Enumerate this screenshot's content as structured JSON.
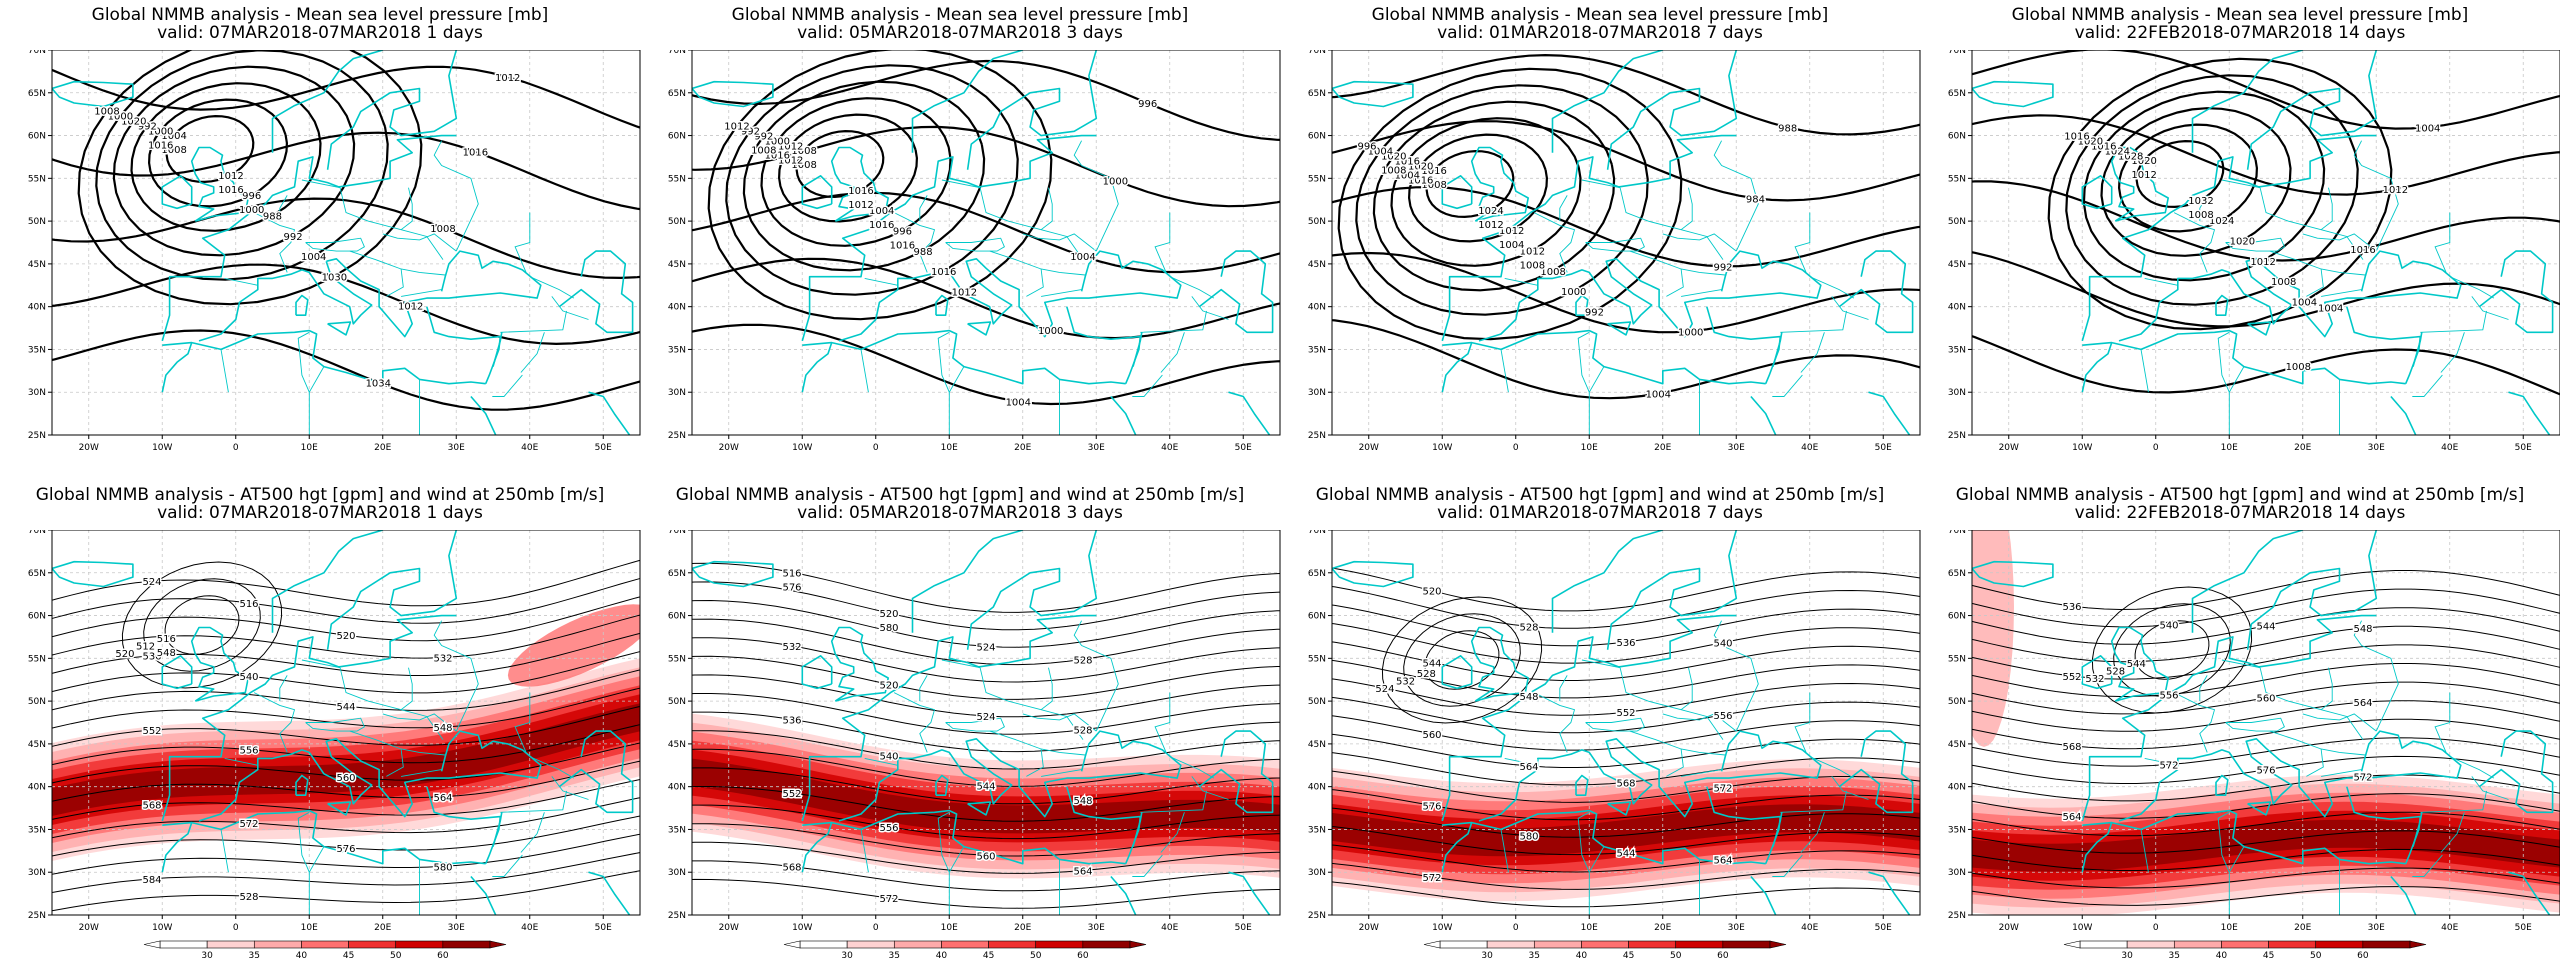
{
  "palette": {
    "coast": "#00c8c8",
    "contour": "#000000",
    "grid": "#c8c8c8",
    "wind": [
      "#ffffff",
      "#ffd2d2",
      "#ffaaaa",
      "#ff7070",
      "#f03030",
      "#d00000",
      "#900000"
    ]
  },
  "axes": {
    "lon_ticks": [
      "20W",
      "10W",
      "0",
      "10E",
      "20E",
      "30E",
      "40E",
      "50E"
    ],
    "lat_ticks": [
      "70N",
      "65N",
      "60N",
      "55N",
      "50N",
      "45N",
      "40N",
      "35N",
      "30N",
      "25N"
    ],
    "lon_range": [
      -25,
      55
    ],
    "lat_range": [
      25,
      70
    ]
  },
  "colorbar": {
    "ticks": [
      "30",
      "35",
      "40",
      "45",
      "50",
      "60"
    ]
  },
  "panels": [
    {
      "id": "mslp-1d",
      "kind": "mslp",
      "title": "Global NMMB analysis - Mean sea level pressure [mb]",
      "valid": "valid: 07MAR2018-07MAR2018   1 days",
      "contour_labels": [
        "1004",
        "1012",
        "1000",
        "996",
        "992",
        "988",
        "1020",
        "992",
        "1000",
        "1004",
        "1008",
        "1030",
        "1012",
        "1016",
        "1008",
        "1012",
        "1034",
        "1008",
        "1016",
        "1016",
        "1000"
      ]
    },
    {
      "id": "mslp-3d",
      "kind": "mslp",
      "title": "Global NMMB analysis - Mean sea level pressure [mb]",
      "valid": "valid: 05MAR2018-07MAR2018   3 days",
      "contour_labels": [
        "1008",
        "1016",
        "1012",
        "1004",
        "1000",
        "996",
        "992",
        "988",
        "992",
        "1016",
        "1012",
        "1012",
        "996",
        "1000",
        "1004",
        "1000",
        "1004",
        "1008",
        "1012",
        "1012",
        "1016",
        "1016",
        "1016",
        "1008"
      ]
    },
    {
      "id": "mslp-7d",
      "kind": "mslp",
      "title": "Global NMMB analysis - Mean sea level pressure [mb]",
      "valid": "valid: 01MAR2018-07MAR2018   7 days",
      "contour_labels": [
        "1016",
        "1024",
        "1020",
        "1012",
        "1016",
        "1012",
        "1020",
        "1008",
        "1004",
        "1000",
        "996",
        "992",
        "988",
        "984",
        "992",
        "1000",
        "1004",
        "1008",
        "1012",
        "1016",
        "1004",
        "1004",
        "1008",
        "1008"
      ]
    },
    {
      "id": "mslp-14d",
      "kind": "mslp",
      "title": "Global NMMB analysis - Mean sea level pressure [mb]",
      "valid": "valid: 22FEB2018-07MAR2018   14 days",
      "contour_labels": [
        "1020",
        "1032",
        "1028",
        "1024",
        "1024",
        "1020",
        "1016",
        "1012",
        "1020",
        "1008",
        "1016",
        "1004",
        "1004",
        "1012",
        "1016",
        "1004",
        "1008",
        "1012",
        "1008"
      ]
    },
    {
      "id": "z500-1d",
      "kind": "z500",
      "title": "Global NMMB analysis - AT500 hgt [gpm] and wind at 250mb [m/s]",
      "valid": "valid: 07MAR2018-07MAR2018   1 days",
      "contour_labels": [
        "516",
        "512",
        "520",
        "524",
        "516",
        "520",
        "532",
        "536",
        "540",
        "544",
        "548",
        "552",
        "556",
        "560",
        "564",
        "568",
        "572",
        "576",
        "580",
        "584",
        "528",
        "548"
      ]
    },
    {
      "id": "z500-3d",
      "kind": "z500",
      "title": "Global NMMB analysis - AT500 hgt [gpm] and wind at 250mb [m/s]",
      "valid": "valid: 05MAR2018-07MAR2018   3 days",
      "contour_labels": [
        "516",
        "520",
        "524",
        "528",
        "532",
        "520",
        "524",
        "528",
        "536",
        "540",
        "544",
        "548",
        "552",
        "556",
        "560",
        "564",
        "568",
        "572",
        "576",
        "580"
      ]
    },
    {
      "id": "z500-7d",
      "kind": "z500",
      "title": "Global NMMB analysis - AT500 hgt [gpm] and wind at 250mb [m/s]",
      "valid": "valid: 01MAR2018-07MAR2018   7 days",
      "contour_labels": [
        "528",
        "532",
        "524",
        "520",
        "528",
        "536",
        "540",
        "544",
        "548",
        "552",
        "556",
        "560",
        "564",
        "568",
        "572",
        "576",
        "580",
        "544",
        "564",
        "572"
      ]
    },
    {
      "id": "z500-14d",
      "kind": "z500",
      "title": "Global NMMB analysis - AT500 hgt [gpm] and wind at 250mb [m/s]",
      "valid": "valid: 22FEB2018-07MAR2018   14 days",
      "contour_labels": [
        "544",
        "528",
        "532",
        "536",
        "540",
        "544",
        "548",
        "552",
        "556",
        "560",
        "564",
        "568",
        "572",
        "576",
        "572",
        "564"
      ]
    }
  ]
}
